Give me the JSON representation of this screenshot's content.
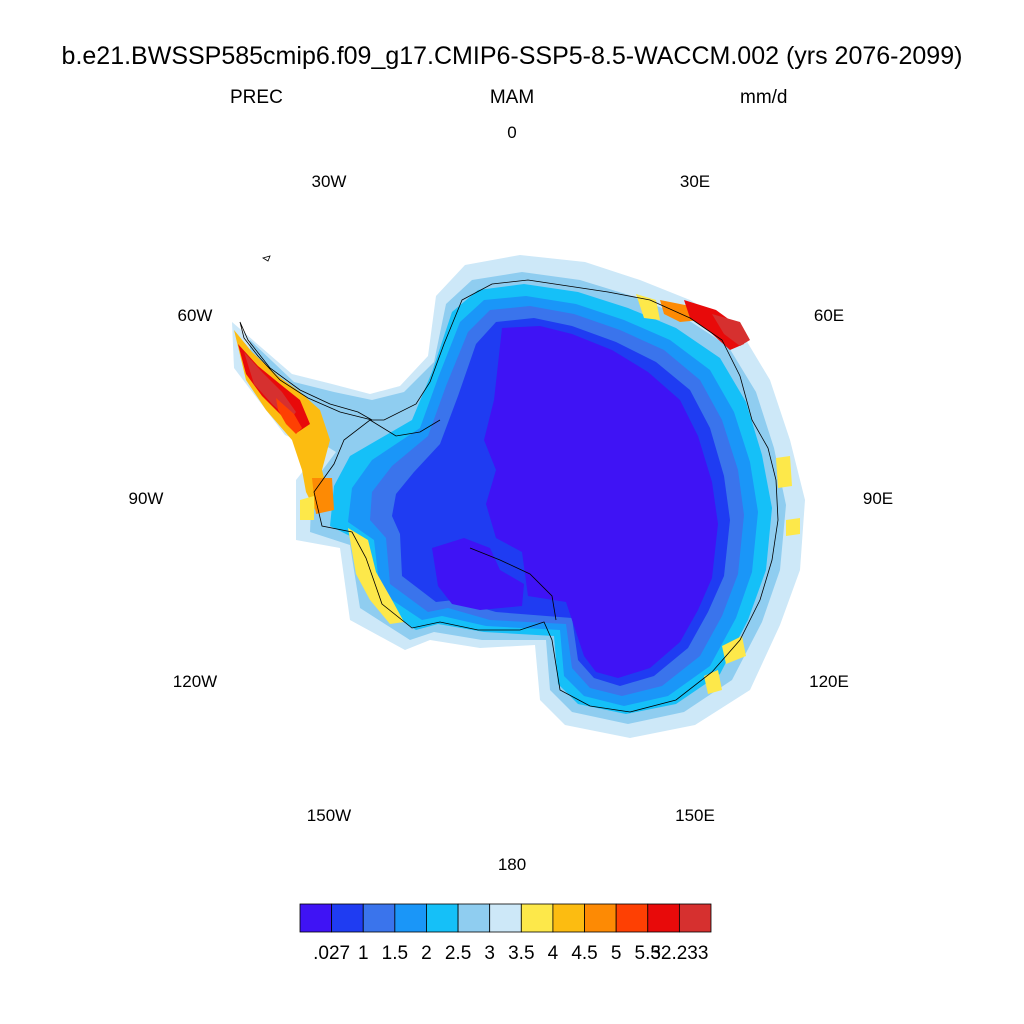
{
  "figure": {
    "title": "b.e21.BWSSP585cmip6.f09_g17.CMIP6-SSP5-8.5-WACCM.002 (yrs 2076-2099)",
    "variable": "PREC",
    "season": "MAM",
    "units": "mm/d"
  },
  "longitude_labels": [
    {
      "deg": 0,
      "text": "0"
    },
    {
      "deg": 30,
      "text": "30E"
    },
    {
      "deg": 60,
      "text": "60E"
    },
    {
      "deg": 90,
      "text": "90E"
    },
    {
      "deg": 120,
      "text": "120E"
    },
    {
      "deg": 150,
      "text": "150E"
    },
    {
      "deg": 180,
      "text": "180"
    },
    {
      "deg": 210,
      "text": "150W"
    },
    {
      "deg": 240,
      "text": "120W"
    },
    {
      "deg": 270,
      "text": "90W"
    },
    {
      "deg": 300,
      "text": "60W"
    },
    {
      "deg": 330,
      "text": "30W"
    }
  ],
  "colorbar": {
    "colors": [
      "#3f13f5",
      "#1f3cf2",
      "#3a74ec",
      "#1a96f8",
      "#15c0f8",
      "#8fcdf0",
      "#cde8f8",
      "#fde84a",
      "#fcbc11",
      "#fd8a04",
      "#fe4003",
      "#e80a0a",
      "#d6302f"
    ],
    "labels": [
      ".027",
      "1",
      "1.5",
      "2",
      "2.5",
      "3",
      "3.5",
      "4",
      "4.5",
      "5",
      "5.5",
      "32.233"
    ]
  }
}
